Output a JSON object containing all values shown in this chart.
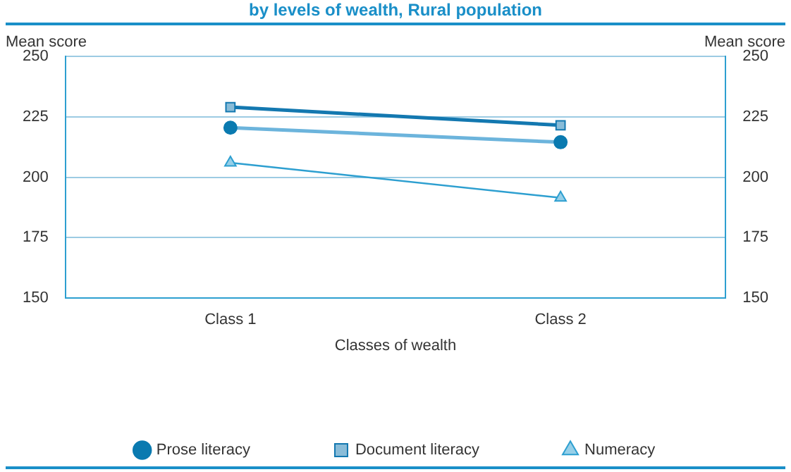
{
  "chart_data": {
    "type": "line",
    "title": "by levels of wealth, Rural population",
    "xlabel": "Classes of wealth",
    "ylabel": "Mean score",
    "y2label": "Mean score",
    "categories": [
      "Class 1",
      "Class 2"
    ],
    "series": [
      {
        "name": "Prose literacy",
        "color": "#6cb4dc",
        "marker": "circle",
        "values": [
          220.5,
          214.5
        ]
      },
      {
        "name": "Document literacy",
        "color": "#1378b0",
        "marker": "square",
        "values": [
          229,
          221.5
        ]
      },
      {
        "name": "Numeracy",
        "color": "#2d9fd0",
        "marker": "triangle",
        "values": [
          206,
          191.5
        ]
      }
    ],
    "ylim": [
      150,
      250
    ],
    "yticks": [
      150,
      175,
      200,
      225,
      250
    ],
    "y2lim": [
      150,
      250
    ],
    "y2ticks": [
      150,
      175,
      200,
      225,
      250
    ],
    "grid": "y",
    "legend": "bottom"
  }
}
